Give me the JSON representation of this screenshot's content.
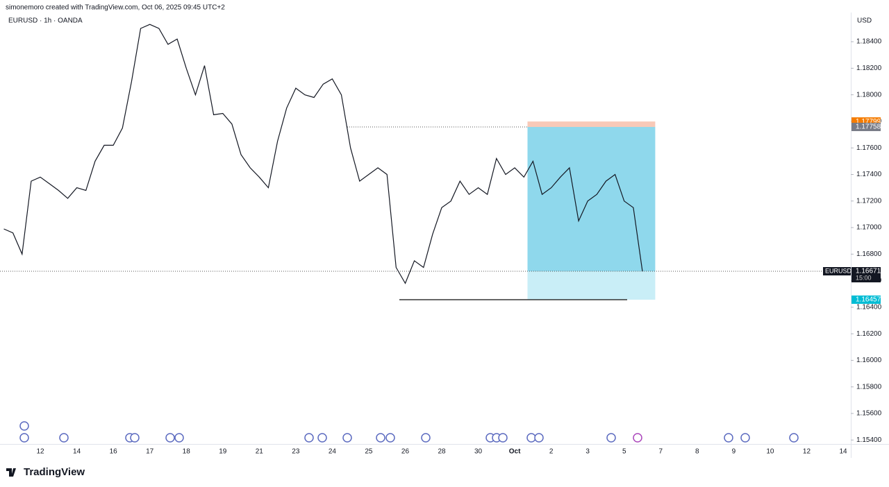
{
  "chart_data": {
    "type": "line",
    "attribution": "simonemoro created with TradingView.com, Oct 06, 2025 09:45 UTC+2",
    "title": "EURUSD · 1h · OANDA",
    "currency": "USD",
    "brand": "TradingView",
    "categories": [
      null,
      null,
      null,
      null,
      "12",
      null,
      null,
      null,
      "14",
      null,
      null,
      null,
      "16",
      null,
      null,
      null,
      "17",
      null,
      null,
      null,
      "18",
      null,
      null,
      null,
      "19",
      null,
      null,
      null,
      "21",
      null,
      null,
      null,
      "23",
      null,
      null,
      null,
      "24",
      null,
      null,
      null,
      "25",
      null,
      null,
      null,
      "26",
      null,
      null,
      null,
      "28",
      null,
      null,
      null,
      "30",
      null,
      null,
      null,
      "Oct",
      null,
      null,
      null,
      "2",
      null,
      null,
      null,
      "3",
      null,
      null,
      null,
      "5",
      null,
      null,
      null,
      "7",
      null,
      null,
      null,
      "8",
      null,
      null,
      null,
      "9",
      null,
      null,
      null,
      "10",
      null,
      null,
      null,
      "12",
      null,
      null,
      null,
      "14",
      null,
      null,
      null
    ],
    "series": [
      {
        "name": "EURUSD",
        "color": "#131722",
        "values": [
          1.1699,
          1.1696,
          1.168,
          1.1735,
          1.1738,
          1.1733,
          1.1728,
          1.1722,
          1.173,
          1.1728,
          1.175,
          1.1762,
          1.1762,
          1.1775,
          1.181,
          1.185,
          1.1853,
          1.185,
          1.1838,
          1.1842,
          1.182,
          1.18,
          1.1822,
          1.1785,
          1.1786,
          1.1778,
          1.1755,
          1.1745,
          1.1738,
          1.173,
          1.1765,
          1.179,
          1.1805,
          1.18,
          1.1798,
          1.1808,
          1.1812,
          1.18,
          1.176,
          1.1735,
          1.174,
          1.1745,
          1.174,
          1.167,
          1.1658,
          1.1675,
          1.167,
          1.1695,
          1.1715,
          1.172,
          1.1735,
          1.1725,
          1.173,
          1.1725,
          1.1752,
          1.174,
          1.1745,
          1.1738,
          1.175,
          1.1725,
          1.173,
          1.1738,
          1.1745,
          1.1705,
          1.172,
          1.1725,
          1.1735,
          1.174,
          1.172,
          1.1715,
          1.1667,
          null,
          null,
          null,
          null,
          null,
          null,
          null,
          null,
          null,
          null,
          null,
          null,
          null,
          null,
          null,
          null,
          null,
          null,
          null,
          null,
          null,
          null,
          null,
          null,
          null
        ]
      }
    ],
    "last": {
      "value": 1.16671,
      "countdown": "15:00"
    },
    "position": {
      "stop": 1.17799,
      "entry": 1.17758,
      "target": 1.16457,
      "stop_color": "#f57c00",
      "entry_color": "#787b86",
      "target_color": "#00bcd4"
    },
    "ylim": [
      1.1537,
      1.1862
    ],
    "yticks": [
      {
        "value": 1.154,
        "label": "1.15400"
      },
      {
        "value": 1.156,
        "label": "1.15600"
      },
      {
        "value": 1.158,
        "label": "1.15800"
      },
      {
        "value": 1.16,
        "label": "1.16000"
      },
      {
        "value": 1.162,
        "label": "1.16200"
      },
      {
        "value": 1.164,
        "label": "1.16400"
      },
      {
        "value": 1.166,
        "label": "1.16600"
      },
      {
        "value": 1.168,
        "label": "1.16800"
      },
      {
        "value": 1.17,
        "label": "1.17000"
      },
      {
        "value": 1.172,
        "label": "1.17200"
      },
      {
        "value": 1.174,
        "label": "1.17400"
      },
      {
        "value": 1.176,
        "label": "1.17600"
      },
      {
        "value": 1.178,
        "label": "1.17800"
      },
      {
        "value": 1.18,
        "label": "1.18000"
      },
      {
        "value": 1.182,
        "label": "1.18200"
      },
      {
        "value": 1.184,
        "label": "1.18400"
      }
    ],
    "grid": false
  }
}
